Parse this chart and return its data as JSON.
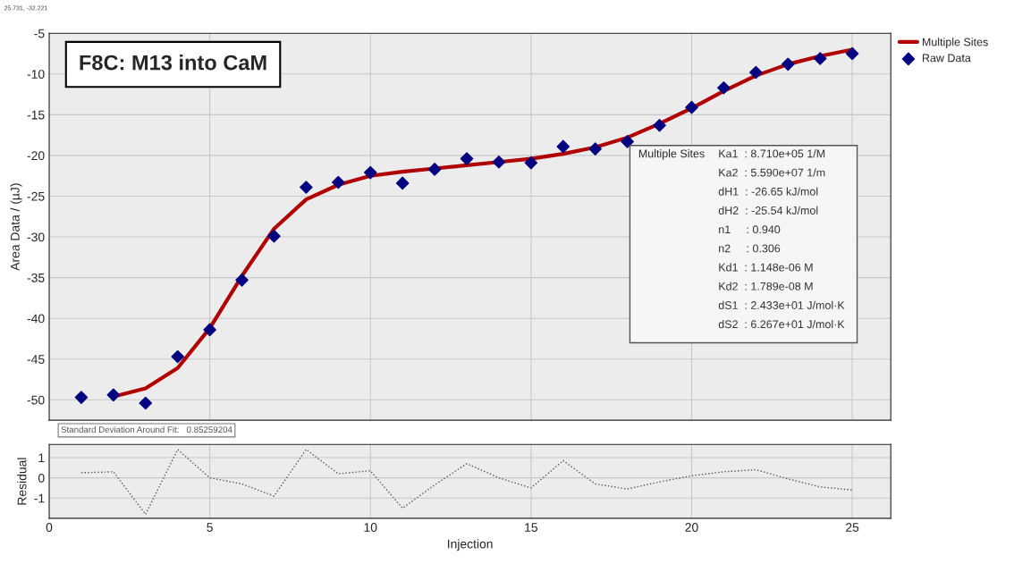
{
  "chart_data": [
    {
      "type": "scatter",
      "title": "F8C: M13 into CaM",
      "ylabel": "Area Data / (µJ)",
      "annotations": [
        "25.731, -32.221",
        "Standard Deviation Around Fit:   0.85259204",
        "Multiple Sites",
        "Ka1  : 8.710e+05 1/M",
        "Ka2  : 5.590e+07 1/m",
        "dH1  : -26.65 kJ/mol",
        "dH2  : -25.54 kJ/mol",
        "n1     : 0.940",
        "n2     : 0.306",
        "Kd1  : 1.148e-06 M",
        "Kd2  : 1.789e-08 M",
        "dS1  : 2.433e+01 J/mol·K",
        "dS2  : 6.267e+01 J/mol·K"
      ],
      "series": [
        {
          "name": "Multiple Sites",
          "type": "line",
          "color": "#b00000",
          "line_style": "solid",
          "marker": "none",
          "x": [
            2,
            3,
            4,
            5,
            6,
            7,
            8,
            9,
            10,
            11,
            12,
            13,
            14,
            15,
            16,
            17,
            18,
            19,
            20,
            21,
            22,
            23,
            24,
            25
          ],
          "values": [
            -49.6,
            -48.6,
            -46.1,
            -41.2,
            -34.8,
            -29.0,
            -25.4,
            -23.6,
            -22.5,
            -22.0,
            -21.6,
            -21.2,
            -20.8,
            -20.4,
            -19.8,
            -19.0,
            -17.8,
            -16.1,
            -14.2,
            -12.1,
            -10.2,
            -8.8,
            -7.8,
            -7.0
          ]
        },
        {
          "name": "Raw Data",
          "type": "scatter",
          "color": "#000080",
          "marker": "diamond",
          "x": [
            1,
            2,
            3,
            4,
            5,
            6,
            7,
            8,
            9,
            10,
            11,
            12,
            13,
            14,
            15,
            16,
            17,
            18,
            19,
            20,
            21,
            22,
            23,
            24,
            25
          ],
          "values": [
            -49.7,
            -49.4,
            -50.4,
            -44.7,
            -41.4,
            -35.3,
            -29.9,
            -23.9,
            -23.3,
            -22.1,
            -23.4,
            -21.7,
            -20.4,
            -20.8,
            -20.9,
            -18.9,
            -19.2,
            -18.3,
            -16.3,
            -14.1,
            -11.7,
            -9.8,
            -8.8,
            -8.1,
            -7.5
          ]
        }
      ],
      "xlim": [
        0,
        26.2
      ],
      "xticks": [
        0,
        5,
        10,
        15,
        20,
        25
      ],
      "ylim": [
        -52.5,
        -5
      ],
      "yticks": [
        -50,
        -45,
        -40,
        -35,
        -30,
        -25,
        -20,
        -15,
        -10,
        -5
      ],
      "grid": true,
      "legend": "top right",
      "tick_labels": "y"
    },
    {
      "type": "line",
      "xlabel": "Injection",
      "ylabel": "Residual",
      "series": [
        {
          "color": "#555555",
          "line_style": "dotted",
          "marker": "none",
          "x": [
            1,
            2,
            3,
            4,
            5,
            6,
            7,
            8,
            9,
            10,
            11,
            12,
            13,
            14,
            15,
            16,
            17,
            18,
            19,
            20,
            21,
            22,
            23,
            24,
            25
          ],
          "values": [
            0.25,
            0.3,
            -1.8,
            1.4,
            0,
            -0.3,
            -0.9,
            1.4,
            0.2,
            0.35,
            -1.5,
            -0.35,
            0.7,
            0,
            -0.5,
            0.85,
            -0.3,
            -0.55,
            -0.2,
            0.1,
            0.3,
            0.4,
            -0.05,
            -0.45,
            -0.6
          ]
        }
      ],
      "xlim": [
        0,
        26.2
      ],
      "xticks": [
        0,
        5,
        10,
        15,
        20,
        25
      ],
      "ylim": [
        -2,
        1.65
      ],
      "yticks": [
        -1,
        0,
        1
      ],
      "grid": true
    }
  ]
}
